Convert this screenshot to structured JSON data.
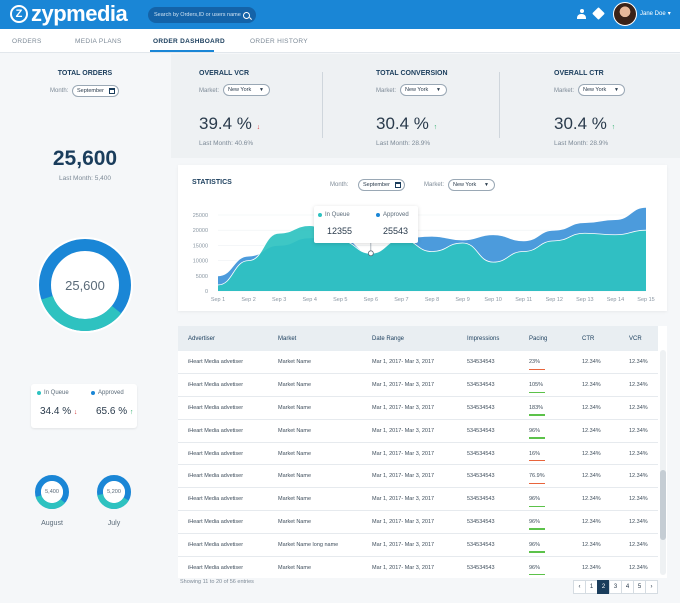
{
  "app": {
    "logo_text": "zypmedia",
    "logo_mark": "Z"
  },
  "header": {
    "search_placeholder": "Search by Orders,ID or users name",
    "user_name": "Jane Doe"
  },
  "nav": {
    "tabs": [
      "ORDERS",
      "MEDIA PLANS",
      "ORDER DASHBOARD",
      "ORDER HISTORY"
    ],
    "active": "ORDER DASHBOARD"
  },
  "sidebar": {
    "title": "TOTAL ORDERS",
    "month_label": "Month:",
    "month_value": "September",
    "total": "25,600",
    "last_month": "Last Month: 5,400",
    "donut_value": "25,600",
    "queue_label": "In Queue",
    "queue_value": "34.4 %",
    "approved_label": "Approved",
    "approved_value": "65.6 %",
    "small_donuts": [
      {
        "value": "5,400",
        "label": "August"
      },
      {
        "value": "5,200",
        "label": "July"
      }
    ]
  },
  "metrics": [
    {
      "title": "OVERALL VCR",
      "market_label": "Market:",
      "market": "New York",
      "value": "39.4 %",
      "trend": "down",
      "last": "Last Month: 40.6%"
    },
    {
      "title": "TOTAL CONVERSION",
      "market_label": "Market:",
      "market": "New York",
      "value": "30.4 %",
      "trend": "up",
      "last": "Last Month: 28.9%"
    },
    {
      "title": "OVERALL CTR",
      "market_label": "Market:",
      "market": "New York",
      "value": "30.4 %",
      "trend": "up",
      "last": "Last Month: 28.9%"
    }
  ],
  "statistics": {
    "title": "STATISTICS",
    "month_label": "Month:",
    "month_value": "September",
    "market_label": "Market:",
    "market_value": "New York",
    "tooltip": {
      "queue_label": "In Queue",
      "queue_value": "12355",
      "approved_label": "Approved",
      "approved_value": "25543"
    }
  },
  "chart_data": {
    "type": "area",
    "x": [
      "Sep 1",
      "Sep 2",
      "Sep 3",
      "Sep 4",
      "Sep 5",
      "Sep 6",
      "Sep 7",
      "Sep 8",
      "Sep 9",
      "Sep 10",
      "Sep 11",
      "Sep 12",
      "Sep 13",
      "Sep 14",
      "Sep 15"
    ],
    "yticks": [
      "25000",
      "20000",
      "15000",
      "10000",
      "5000",
      "0"
    ],
    "ylim": [
      0,
      25000
    ],
    "series": [
      {
        "name": "Approved",
        "color": "#3d93d9",
        "values": [
          5000,
          11500,
          15000,
          17500,
          17800,
          12400,
          17500,
          18000,
          16800,
          18500,
          16500,
          20000,
          22500,
          23500,
          27500
        ]
      },
      {
        "name": "In Queue",
        "color": "#2ec2c0",
        "values": [
          2000,
          10000,
          19000,
          21500,
          16500,
          12400,
          17000,
          13000,
          15800,
          9500,
          13000,
          16500,
          19000,
          18500,
          20000
        ]
      }
    ]
  },
  "table": {
    "columns": [
      "Advertiser",
      "Market",
      "Date Range",
      "Impressions",
      "Pacing",
      "CTR",
      "VCR"
    ],
    "rows": [
      {
        "advertiser": "iHeart Media advetiser",
        "market": "Market Name",
        "date": "Mar 1, 2017- Mar 3, 2017",
        "impressions": "534534543",
        "pacing": "23%",
        "pace_color": "#e8643c",
        "ctr": "12.34%",
        "vcr": "12.34%"
      },
      {
        "advertiser": "iHeart Media advetiser",
        "market": "Market Name",
        "date": "Mar 1, 2017- Mar 3, 2017",
        "impressions": "534534543",
        "pacing": "105%",
        "pace_color": "#5cc24a",
        "ctr": "12.34%",
        "vcr": "12.34%"
      },
      {
        "advertiser": "iHeart Media advetiser",
        "market": "Market Name",
        "date": "Mar 1, 2017- Mar 3, 2017",
        "impressions": "534534543",
        "pacing": "183%",
        "pace_color": "#5cc24a",
        "ctr": "12.34%",
        "vcr": "12.34%"
      },
      {
        "advertiser": "iHeart Media advetiser",
        "market": "Market Name",
        "date": "Mar 1, 2017- Mar 3, 2017",
        "impressions": "534534543",
        "pacing": "96%",
        "pace_color": "#5cc24a",
        "ctr": "12.34%",
        "vcr": "12.34%"
      },
      {
        "advertiser": "iHeart Media advetiser",
        "market": "Market Name",
        "date": "Mar 1, 2017- Mar 3, 2017",
        "impressions": "534534543",
        "pacing": "16%",
        "pace_color": "#e8643c",
        "ctr": "12.34%",
        "vcr": "12.34%"
      },
      {
        "advertiser": "iHeart Media advetiser",
        "market": "Market Name",
        "date": "Mar 1, 2017- Mar 3, 2017",
        "impressions": "534534543",
        "pacing": "76.9%",
        "pace_color": "#e8643c",
        "ctr": "12.34%",
        "vcr": "12.34%"
      },
      {
        "advertiser": "iHeart Media advetiser",
        "market": "Market Name",
        "date": "Mar 1, 2017- Mar 3, 2017",
        "impressions": "534534543",
        "pacing": "96%",
        "pace_color": "#5cc24a",
        "ctr": "12.34%",
        "vcr": "12.34%"
      },
      {
        "advertiser": "iHeart Media advetiser",
        "market": "Market Name",
        "date": "Mar 1, 2017- Mar 3, 2017",
        "impressions": "534534543",
        "pacing": "96%",
        "pace_color": "#5cc24a",
        "ctr": "12.34%",
        "vcr": "12.34%"
      },
      {
        "advertiser": "iHeart Media advetiser",
        "market": "Market Name long name",
        "date": "Mar 1, 2017- Mar 3, 2017",
        "impressions": "534534543",
        "pacing": "96%",
        "pace_color": "#5cc24a",
        "ctr": "12.34%",
        "vcr": "12.34%"
      },
      {
        "advertiser": "iHeart Media advetiser",
        "market": "Market Name",
        "date": "Mar 1, 2017- Mar 3, 2017",
        "impressions": "534534543",
        "pacing": "96%",
        "pace_color": "#5cc24a",
        "ctr": "12.34%",
        "vcr": "12.34%"
      }
    ],
    "footer": "Showing 11 to 20 of 56 entries",
    "pager": [
      "‹",
      "1",
      "2",
      "3",
      "4",
      "5",
      "›"
    ],
    "current_page": "2"
  },
  "colors": {
    "brand": "#1a86d6",
    "navy": "#1a3d5c",
    "teal": "#2ec2c0",
    "blue": "#1a86d6",
    "red": "#d63a3a",
    "green": "#2fae6c"
  },
  "icons": {
    "search": "search-icon",
    "user": "user-icon",
    "tag": "tag-icon",
    "calendar": "calendar-icon"
  }
}
